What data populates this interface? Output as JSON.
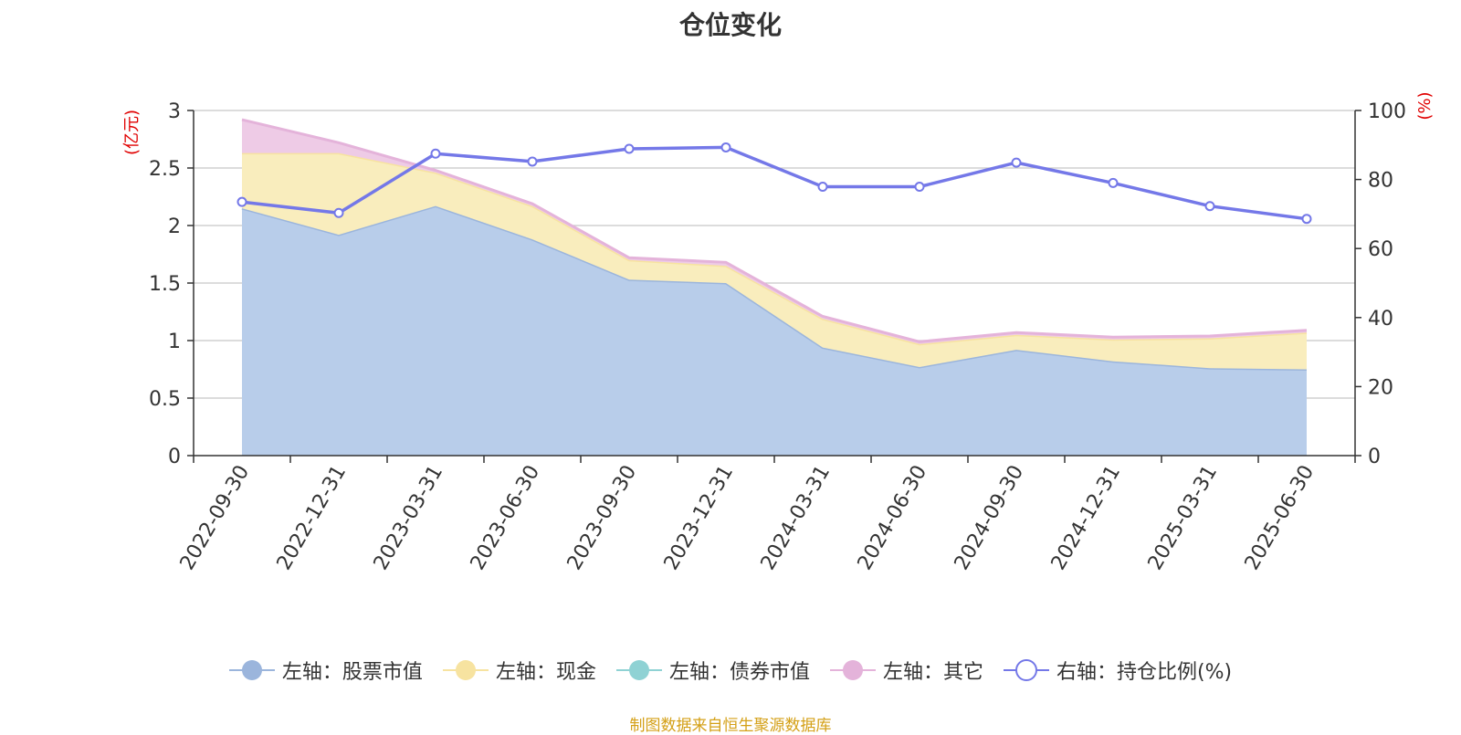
{
  "chart_data": {
    "type": "area",
    "title": "仓位变化",
    "source": "制图数据来自恒生聚源数据库",
    "left_axis": {
      "label": "(亿元)",
      "range": [
        0,
        3
      ],
      "ticks": [
        "0",
        "0.5",
        "1",
        "1.5",
        "2",
        "2.5",
        "3"
      ],
      "tick_values": [
        0,
        0.5,
        1,
        1.5,
        2,
        2.5,
        3
      ]
    },
    "right_axis": {
      "label": "(%)",
      "range": [
        0,
        100
      ],
      "ticks": [
        "0",
        "20",
        "40",
        "60",
        "80",
        "100"
      ],
      "tick_values": [
        0,
        20,
        40,
        60,
        80,
        100
      ]
    },
    "categories": [
      "2022-09-30",
      "2022-12-31",
      "2023-03-31",
      "2023-06-30",
      "2023-09-30",
      "2023-12-31",
      "2024-03-31",
      "2024-06-30",
      "2024-09-30",
      "2024-12-31",
      "2025-03-31",
      "2025-06-30"
    ],
    "series": [
      {
        "name": "左轴：股票市值",
        "axis": "left",
        "stack": true,
        "color": "#9bb5dc",
        "fill": "#b8cdea",
        "values": [
          2.15,
          1.92,
          2.17,
          1.88,
          1.53,
          1.5,
          0.94,
          0.77,
          0.92,
          0.82,
          0.76,
          0.75
        ]
      },
      {
        "name": "左轴：现金",
        "axis": "left",
        "stack": true,
        "color": "#f7e3a0",
        "fill": "#f9edbd",
        "values": [
          0.48,
          0.71,
          0.29,
          0.29,
          0.17,
          0.15,
          0.25,
          0.2,
          0.13,
          0.19,
          0.26,
          0.32
        ]
      },
      {
        "name": "左轴：债券市值",
        "axis": "left",
        "stack": true,
        "color": "#8fd2d4",
        "fill": "#b0e0e2",
        "values": [
          0,
          0,
          0,
          0,
          0,
          0,
          0,
          0,
          0,
          0,
          0,
          0
        ]
      },
      {
        "name": "左轴：其它",
        "axis": "left",
        "stack": true,
        "color": "#e4b3da",
        "fill": "#eecbe6",
        "values": [
          0.29,
          0.09,
          0.02,
          0.02,
          0.02,
          0.03,
          0.02,
          0.02,
          0.02,
          0.02,
          0.02,
          0.02
        ]
      },
      {
        "name": "右轴：持仓比例(%)",
        "axis": "right",
        "type": "line",
        "color": "#7478e8",
        "values": [
          73.5,
          70.3,
          87.5,
          85.2,
          88.9,
          89.3,
          77.9,
          77.9,
          84.9,
          79.0,
          72.3,
          68.6
        ]
      }
    ]
  }
}
